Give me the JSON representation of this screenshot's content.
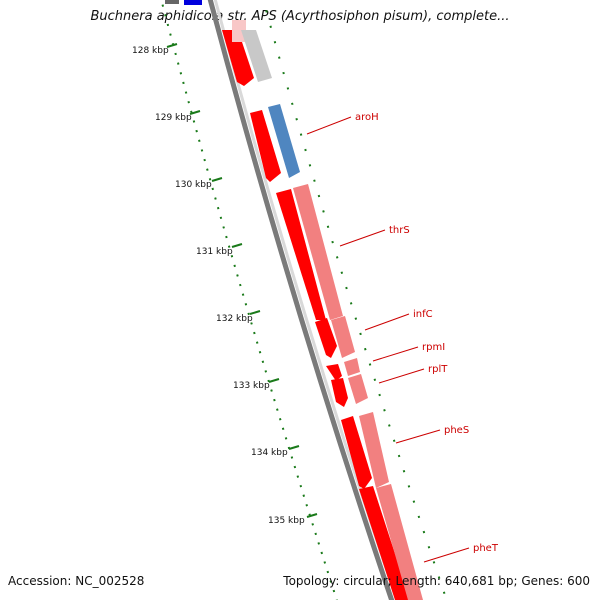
{
  "header": {
    "title": "Buchnera aphidicola str. APS (Acyrthosiphon pisum), complete..."
  },
  "footer": {
    "accession": "Accession: NC_002528",
    "summary": "Topology: circular; Length: 640,681 bp; Genes: 600"
  },
  "ticks": [
    {
      "label": "128 kbp"
    },
    {
      "label": "129 kbp"
    },
    {
      "label": "130 kbp"
    },
    {
      "label": "131 kbp"
    },
    {
      "label": "132 kbp"
    },
    {
      "label": "133 kbp"
    },
    {
      "label": "134 kbp"
    },
    {
      "label": "135 kbp"
    }
  ],
  "genes": [
    {
      "name": "aroH"
    },
    {
      "name": "thrS"
    },
    {
      "name": "infC"
    },
    {
      "name": "rpmI"
    },
    {
      "name": "rplT"
    },
    {
      "name": "pheS"
    },
    {
      "name": "pheT"
    }
  ],
  "colors": {
    "cds_forward": "#ff0000",
    "cds_forward_light": "#f28080",
    "cds_other": "#4f86c0",
    "cds_other_light": "#c8c8c8",
    "backbone": "#7a7a7a",
    "tick_marks": "#1a7a1a",
    "label": "#cc0000"
  }
}
